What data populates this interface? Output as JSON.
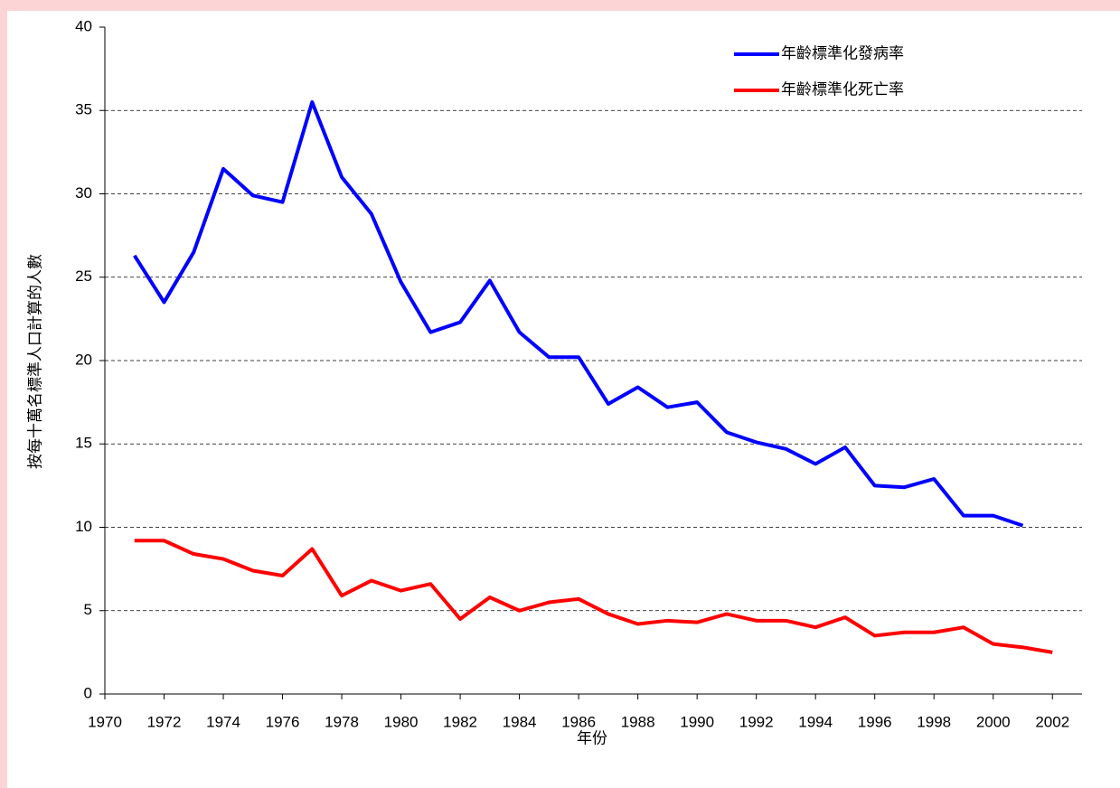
{
  "chart_data": {
    "type": "line",
    "x_label": "年份",
    "y_label": "按每十萬名標準人口計算的人數",
    "x": [
      1971,
      1972,
      1973,
      1974,
      1975,
      1976,
      1977,
      1978,
      1979,
      1980,
      1981,
      1982,
      1983,
      1984,
      1985,
      1986,
      1987,
      1988,
      1989,
      1990,
      1991,
      1992,
      1993,
      1994,
      1995,
      1996,
      1997,
      1998,
      1999,
      2000,
      2001,
      2002
    ],
    "series": [
      {
        "name": "年齡標準化發病率",
        "color": "#0000ff",
        "values": [
          26.3,
          23.5,
          26.5,
          31.5,
          29.9,
          29.5,
          35.5,
          31.0,
          28.8,
          24.7,
          21.7,
          22.3,
          24.8,
          21.7,
          20.2,
          20.2,
          17.4,
          18.4,
          17.2,
          17.5,
          15.7,
          15.1,
          14.7,
          13.8,
          14.8,
          12.5,
          12.4,
          12.9,
          10.7,
          10.7,
          10.1,
          null
        ]
      },
      {
        "name": "年齡標準化死亡率",
        "color": "#ff0000",
        "values": [
          9.2,
          9.2,
          8.4,
          8.1,
          7.4,
          7.1,
          8.7,
          5.9,
          6.8,
          6.2,
          6.6,
          4.5,
          5.8,
          5.0,
          5.5,
          5.7,
          4.8,
          4.2,
          4.4,
          4.3,
          4.8,
          4.4,
          4.4,
          4.0,
          4.6,
          3.5,
          3.7,
          3.7,
          4.0,
          3.0,
          2.8,
          2.5
        ]
      }
    ],
    "xlim": [
      1970,
      2003
    ],
    "xticks": [
      1970,
      1972,
      1974,
      1976,
      1978,
      1980,
      1982,
      1984,
      1986,
      1988,
      1990,
      1992,
      1994,
      1996,
      1998,
      2000,
      2002
    ],
    "ylim": [
      0,
      40
    ],
    "yticks": [
      0,
      5,
      10,
      15,
      20,
      25,
      30,
      35,
      40
    ],
    "grid": true,
    "legend": "upper right"
  }
}
